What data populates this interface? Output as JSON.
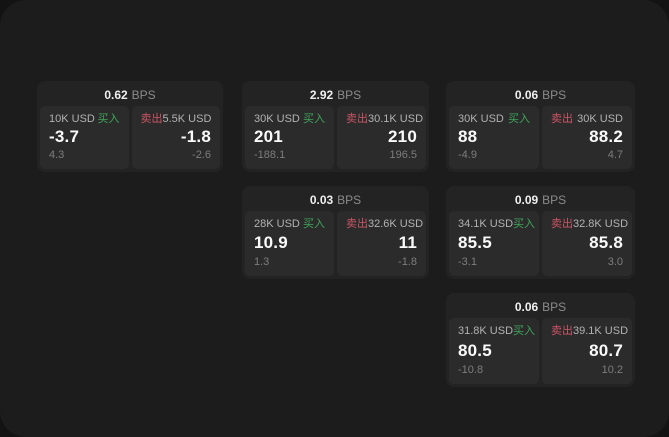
{
  "labels": {
    "unit": "BPS",
    "buy": "买入",
    "sell": "卖出"
  },
  "colors": {
    "buy": "#3fa55a",
    "sell": "#cc5463",
    "card_background": "#232323",
    "tile_background": "#2b2b2c",
    "panel_background": "#1c1c1d"
  },
  "cards": [
    {
      "bps": "0.62",
      "buy": {
        "amount": "10K USD",
        "price": "-3.7",
        "delta": "4.3"
      },
      "sell": {
        "amount": "5.5K USD",
        "price": "-1.8",
        "delta": "-2.6"
      }
    },
    {
      "bps": "2.92",
      "buy": {
        "amount": "30K USD",
        "price": "201",
        "delta": "-188.1"
      },
      "sell": {
        "amount": "30.1K USD",
        "price": "210",
        "delta": "196.5"
      }
    },
    {
      "bps": "0.06",
      "buy": {
        "amount": "30K USD",
        "price": "88",
        "delta": "-4.9"
      },
      "sell": {
        "amount": "30K USD",
        "price": "88.2",
        "delta": "4.7"
      }
    },
    {
      "bps": "0.03",
      "buy": {
        "amount": "28K USD",
        "price": "10.9",
        "delta": "1.3"
      },
      "sell": {
        "amount": "32.6K USD",
        "price": "11",
        "delta": "-1.8"
      }
    },
    {
      "bps": "0.09",
      "buy": {
        "amount": "34.1K USD",
        "price": "85.5",
        "delta": "-3.1"
      },
      "sell": {
        "amount": "32.8K USD",
        "price": "85.8",
        "delta": "3.0"
      }
    },
    {
      "bps": "0.06",
      "buy": {
        "amount": "31.8K USD",
        "price": "80.5",
        "delta": "-10.8"
      },
      "sell": {
        "amount": "39.1K USD",
        "price": "80.7",
        "delta": "10.2"
      }
    }
  ]
}
